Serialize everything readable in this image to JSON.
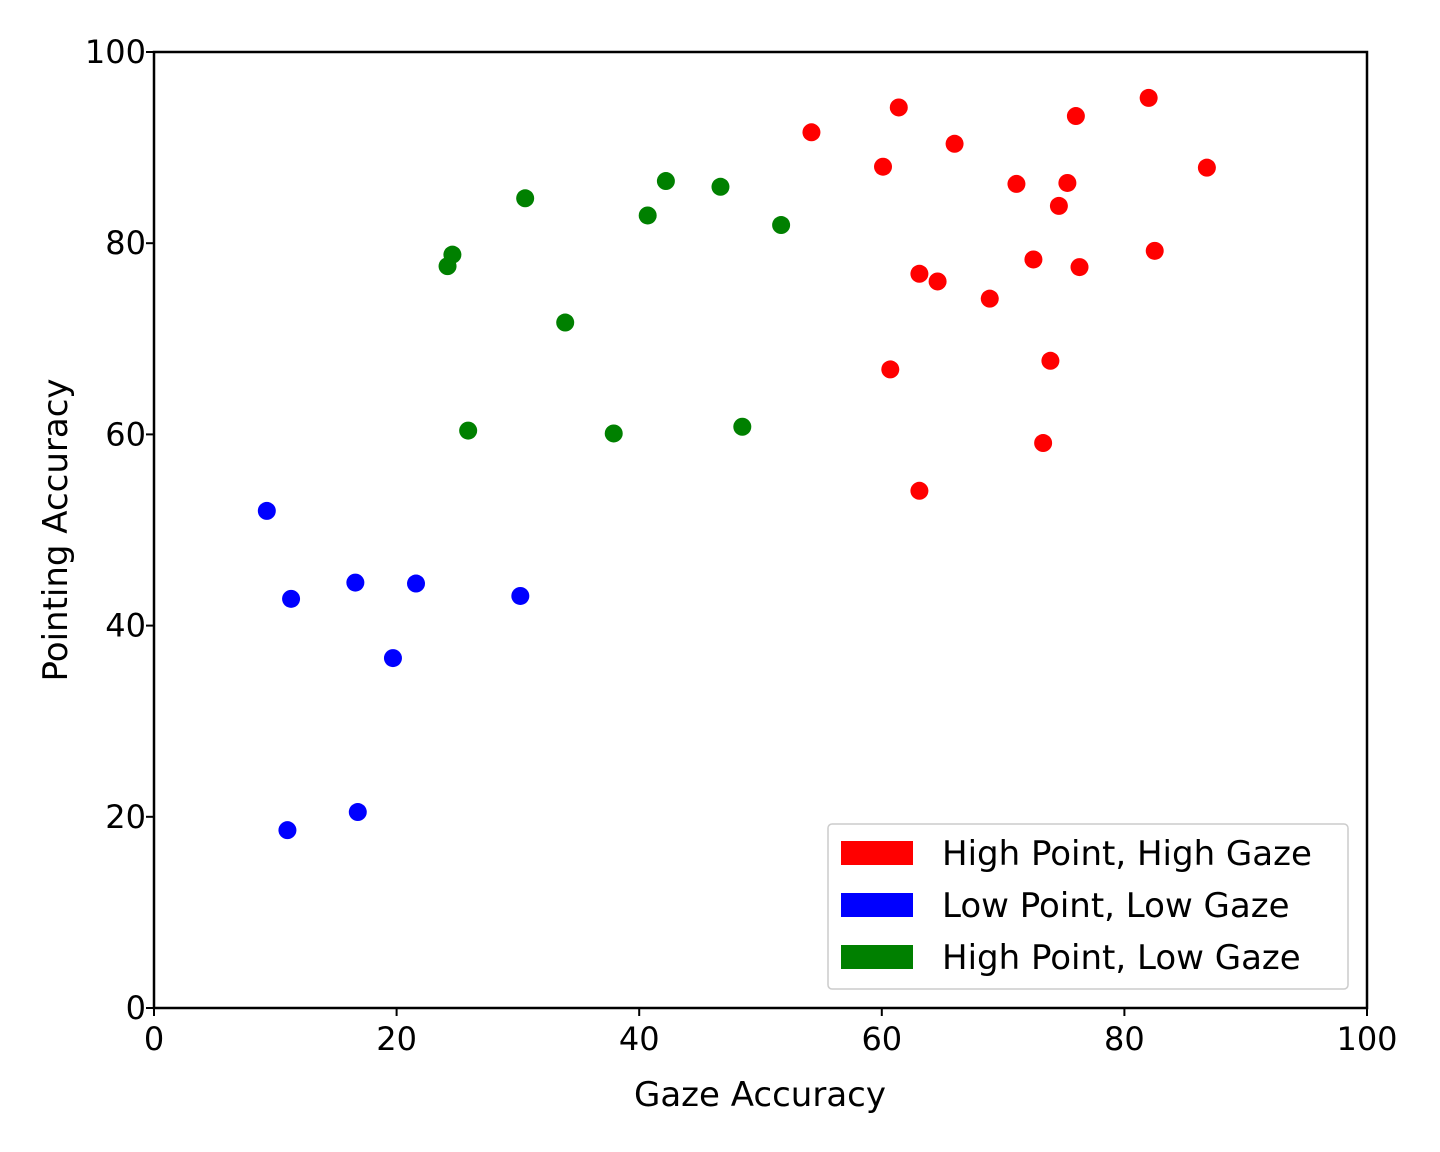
{
  "chart_data": {
    "type": "scatter",
    "title": "",
    "xlabel": "Gaze Accuracy",
    "ylabel": "Pointing Accuracy",
    "xlim": [
      0,
      100
    ],
    "ylim": [
      0,
      100
    ],
    "xticks": [
      0,
      20,
      40,
      60,
      80,
      100
    ],
    "yticks": [
      0,
      20,
      40,
      60,
      80,
      100
    ],
    "grid": false,
    "legend_position": "bottom-right",
    "series": [
      {
        "name": "High Point, High Gaze",
        "color": "#ff0000",
        "points": [
          [
            54.2,
            91.6
          ],
          [
            60.1,
            88.0
          ],
          [
            61.4,
            94.2
          ],
          [
            60.7,
            66.8
          ],
          [
            63.1,
            76.8
          ],
          [
            63.1,
            54.1
          ],
          [
            64.6,
            76.0
          ],
          [
            66.0,
            90.4
          ],
          [
            68.9,
            74.2
          ],
          [
            71.1,
            86.2
          ],
          [
            72.5,
            78.3
          ],
          [
            73.3,
            59.1
          ],
          [
            73.9,
            67.7
          ],
          [
            74.6,
            83.9
          ],
          [
            75.3,
            86.3
          ],
          [
            76.0,
            93.3
          ],
          [
            76.3,
            77.5
          ],
          [
            82.0,
            95.2
          ],
          [
            82.5,
            79.2
          ],
          [
            86.8,
            87.9
          ]
        ]
      },
      {
        "name": "Low Point, Low Gaze",
        "color": "#0000ff",
        "points": [
          [
            9.3,
            52.0
          ],
          [
            11.3,
            42.8
          ],
          [
            16.6,
            44.5
          ],
          [
            21.6,
            44.4
          ],
          [
            30.2,
            43.1
          ],
          [
            19.7,
            36.6
          ],
          [
            16.8,
            20.5
          ],
          [
            11.0,
            18.6
          ]
        ]
      },
      {
        "name": "High Point, Low Gaze",
        "color": "#008000",
        "points": [
          [
            24.2,
            77.6
          ],
          [
            24.6,
            78.8
          ],
          [
            30.6,
            84.7
          ],
          [
            25.9,
            60.4
          ],
          [
            33.9,
            71.7
          ],
          [
            37.9,
            60.1
          ],
          [
            40.7,
            82.9
          ],
          [
            42.2,
            86.5
          ],
          [
            46.7,
            85.9
          ],
          [
            48.5,
            60.8
          ],
          [
            51.7,
            81.9
          ]
        ]
      }
    ]
  }
}
